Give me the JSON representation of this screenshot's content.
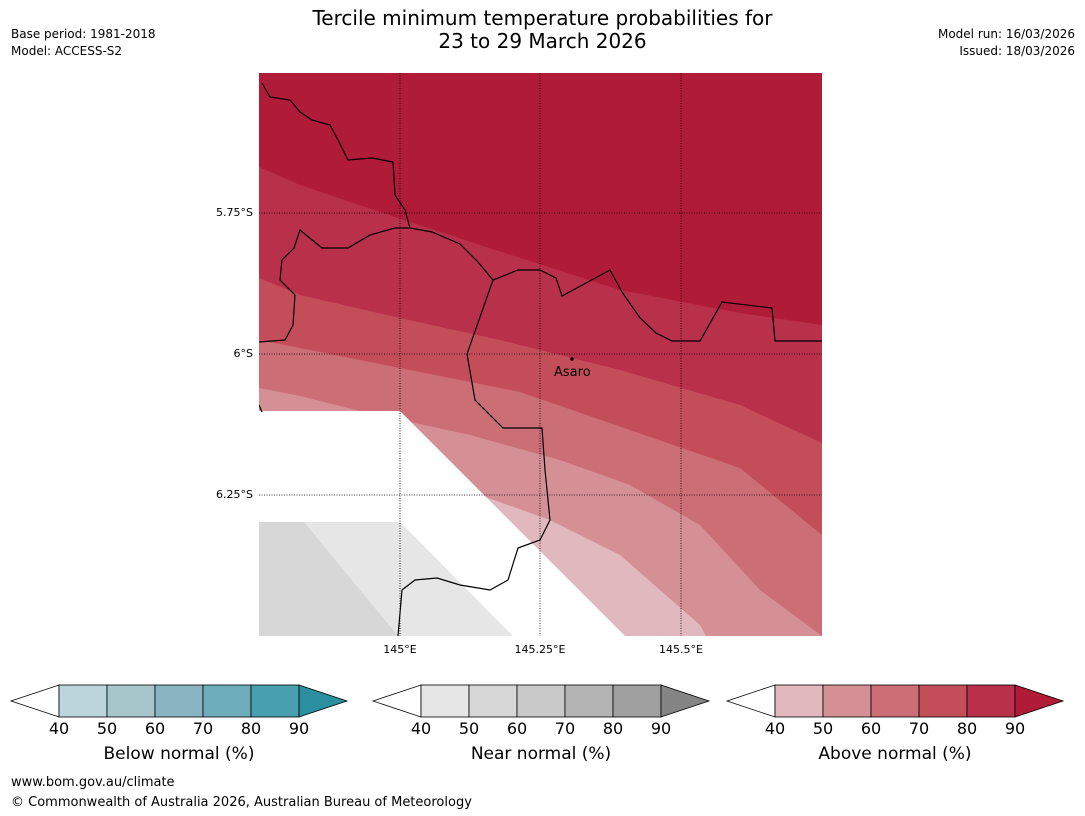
{
  "header": {
    "title_line1": "Tercile minimum temperature probabilities for",
    "title_line2": "23 to 29 March 2026",
    "base_period": "Base period: 1981-2018",
    "model": "Model: ACCESS-S2",
    "model_run": "Model run: 16/03/2026",
    "issued": "Issued: 18/03/2026"
  },
  "map": {
    "lat_labels": [
      "5.75°S",
      "6°S",
      "6.25°S"
    ],
    "lon_labels": [
      "145°E",
      "145.25°E",
      "145.5°E"
    ],
    "city": {
      "name": "Asaro",
      "lon": 145.33,
      "lat": -6.01
    }
  },
  "colorbars": [
    {
      "label": "Below normal (%)",
      "ticks": [
        "40",
        "50",
        "60",
        "70",
        "80",
        "90"
      ],
      "colors": [
        "#ffffff",
        "#bdd5dc",
        "#a6c6cc",
        "#88b5c1",
        "#6eaebc",
        "#48a0ae",
        "#2b8f9f"
      ]
    },
    {
      "label": "Near normal (%)",
      "ticks": [
        "40",
        "50",
        "60",
        "70",
        "80",
        "90"
      ],
      "colors": [
        "#ffffff",
        "#e6e6e6",
        "#d7d7d7",
        "#c9c9c9",
        "#b4b4b4",
        "#a0a0a0",
        "#848484"
      ]
    },
    {
      "label": "Above normal (%)",
      "ticks": [
        "40",
        "50",
        "60",
        "70",
        "80",
        "90"
      ],
      "colors": [
        "#ffffff",
        "#e0b8be",
        "#d59096",
        "#cb6e76",
        "#c34e5a",
        "#b8304a",
        "#b01c37"
      ]
    }
  ],
  "footer": {
    "url": "www.bom.gov.au/climate",
    "copyright": "© Commonwealth of Australia 2026, Australian Bureau of Meteorology"
  }
}
